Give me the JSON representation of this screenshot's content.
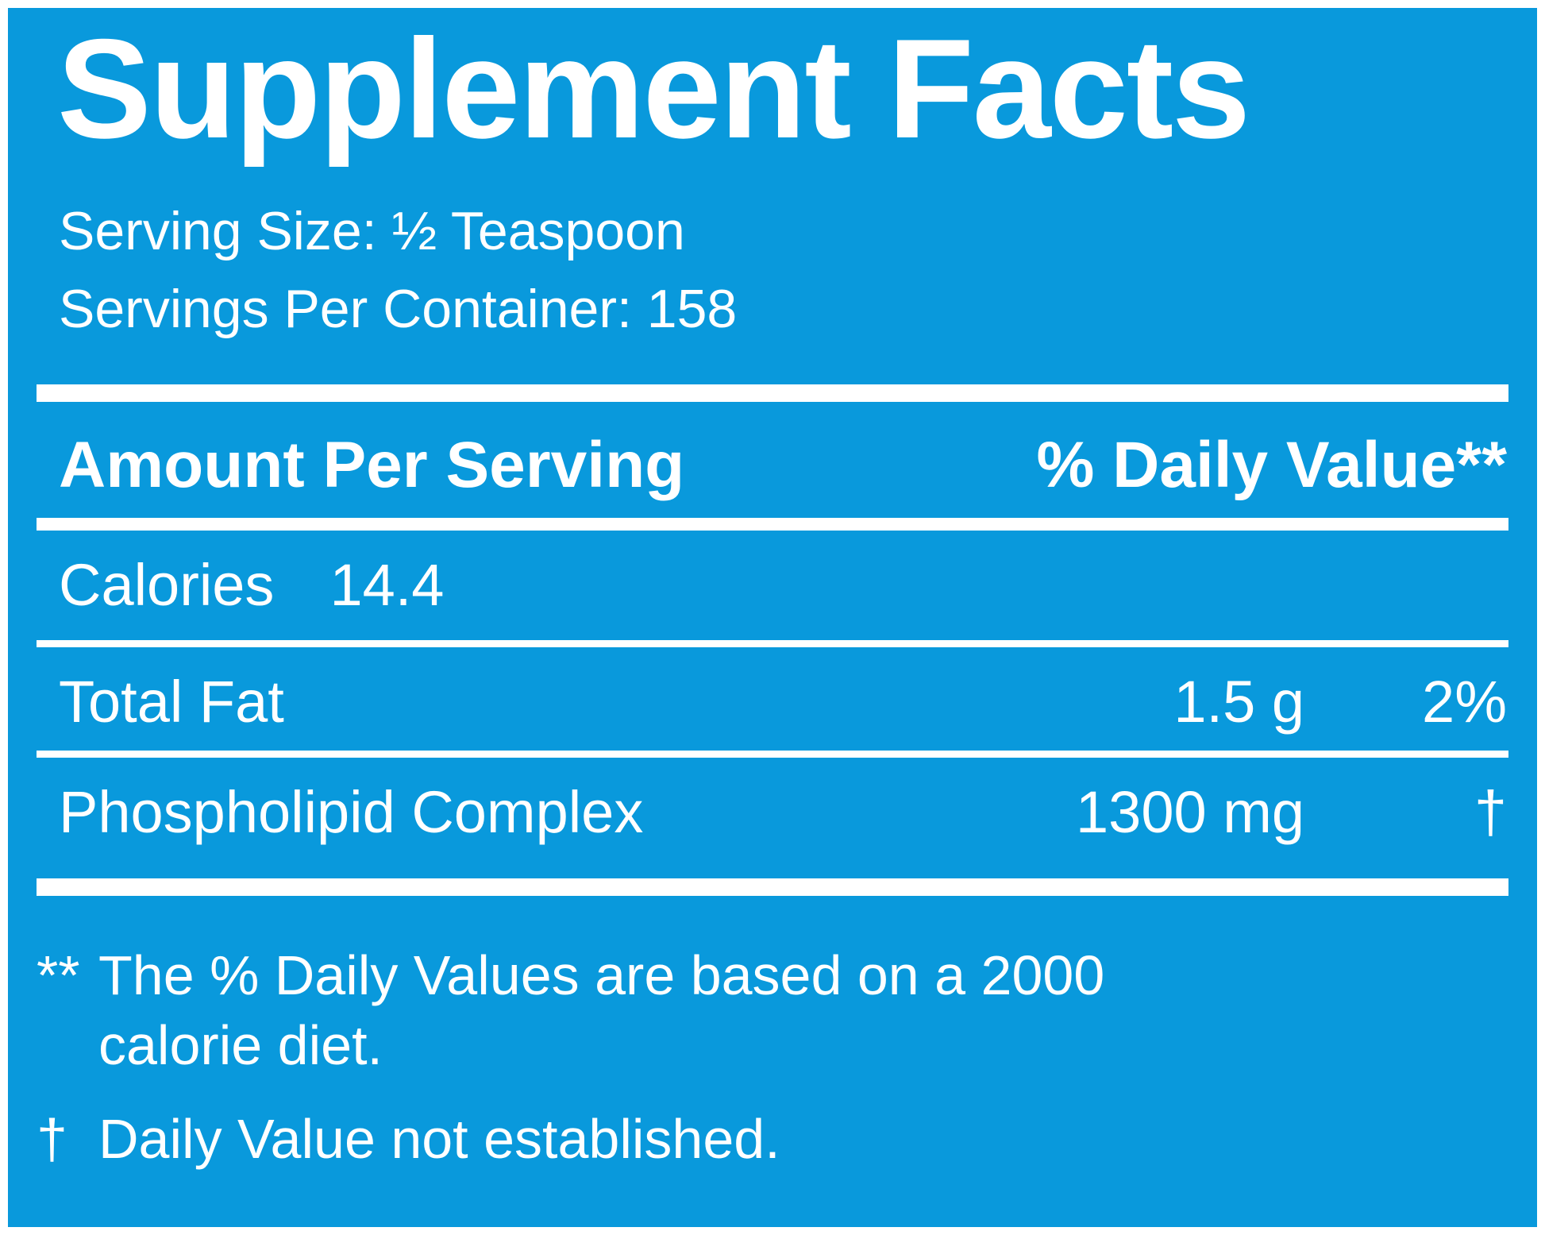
{
  "colors": {
    "panel_bg": "#0999DC",
    "text": "#FFFFFF"
  },
  "label": {
    "title": "Supplement Facts",
    "serving_size_line": "Serving Size: ½ Teaspoon",
    "servings_per_container_line": "Servings Per Container: 158",
    "header": {
      "amount_label": "Amount Per Serving",
      "daily_value_label": "% Daily Value**"
    },
    "rows": [
      {
        "label": "Calories",
        "amount": "14.4",
        "dv": ""
      },
      {
        "label": "Total Fat",
        "amount": "1.5 g",
        "dv": "2%"
      },
      {
        "label": "Phospholipid Complex",
        "amount": "1300 mg",
        "dv": "†"
      }
    ],
    "footnotes": [
      {
        "marker": "**",
        "line1": "The % Daily Values are based on a 2000",
        "line2": "calorie diet."
      },
      {
        "marker": "†",
        "line1": "Daily Value not established.",
        "line2": ""
      }
    ]
  }
}
